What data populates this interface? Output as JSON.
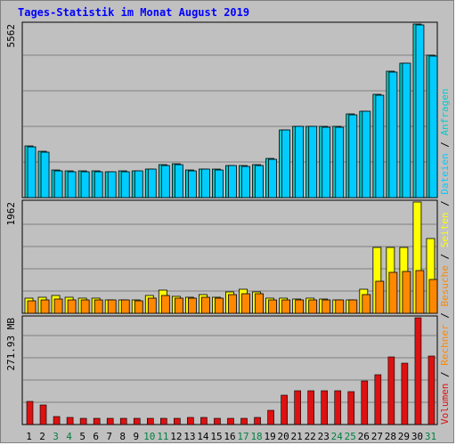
{
  "title": "Tages-Statistik im Monat August 2019",
  "colors": {
    "background": "#c0c0c0",
    "title": "#0000ff",
    "grid": "#808080",
    "anfragen": "#00cccc",
    "dateien": "#00ccff",
    "seiten": "#ffff00",
    "besuche": "#ff8800",
    "volumen": "#dd1111",
    "weekend_label": "#008040",
    "weekday_label": "#000000"
  },
  "chart_data": [
    {
      "type": "bar",
      "id": "hits-files",
      "ymax_label": "5562",
      "ylim": [
        0,
        5562
      ],
      "x": [
        "1",
        "2",
        "3",
        "4",
        "5",
        "6",
        "7",
        "8",
        "9",
        "10",
        "11",
        "12",
        "13",
        "14",
        "15",
        "16",
        "17",
        "18",
        "19",
        "20",
        "21",
        "22",
        "23",
        "24",
        "25",
        "26",
        "27",
        "28",
        "29",
        "30",
        "31"
      ],
      "weekend": [
        "3",
        "4",
        "10",
        "11",
        "17",
        "18",
        "24",
        "25",
        "31"
      ],
      "series": [
        {
          "name": "Anfragen",
          "values": [
            1660,
            1475,
            880,
            860,
            860,
            850,
            840,
            860,
            865,
            920,
            1050,
            1070,
            870,
            920,
            910,
            1040,
            1030,
            1050,
            1250,
            2180,
            2290,
            2290,
            2280,
            2270,
            2680,
            2780,
            3300,
            4050,
            4320,
            5562,
            4550
          ]
        },
        {
          "name": "Dateien",
          "values": [
            1640,
            1455,
            860,
            840,
            840,
            830,
            820,
            840,
            845,
            900,
            1030,
            1050,
            850,
            900,
            890,
            1020,
            1010,
            1030,
            1230,
            2160,
            2270,
            2270,
            2260,
            2250,
            2660,
            2760,
            3280,
            4030,
            4300,
            5540,
            4530
          ]
        }
      ]
    },
    {
      "type": "bar",
      "id": "pages-visits",
      "ymax_label": "1962",
      "ylim": [
        0,
        1962
      ],
      "series": [
        {
          "name": "Seiten",
          "values": [
            260,
            290,
            320,
            280,
            260,
            260,
            240,
            240,
            230,
            320,
            410,
            300,
            280,
            330,
            280,
            370,
            420,
            380,
            260,
            260,
            250,
            260,
            250,
            240,
            240,
            430,
            1160,
            1160,
            1160,
            1962,
            1320
          ]
        },
        {
          "name": "Besuche",
          "values": [
            220,
            230,
            250,
            230,
            230,
            230,
            230,
            230,
            220,
            260,
            310,
            260,
            260,
            280,
            260,
            330,
            350,
            340,
            240,
            240,
            240,
            240,
            240,
            240,
            240,
            330,
            570,
            720,
            730,
            760,
            590
          ]
        }
      ]
    },
    {
      "type": "bar",
      "id": "volume",
      "ymax_label": "271.93 MB",
      "ylim": [
        0,
        271.93
      ],
      "series": [
        {
          "name": "Volumen",
          "values": [
            58,
            49,
            20,
            18,
            16,
            15,
            16,
            15,
            15,
            16,
            16,
            15,
            17,
            17,
            16,
            16,
            16,
            17,
            37,
            75,
            85,
            85,
            85,
            85,
            84,
            110,
            128,
            172,
            157,
            271.93,
            175
          ]
        }
      ]
    }
  ],
  "right_legend": [
    {
      "text": "Anfragen",
      "color_key": "anfragen"
    },
    {
      "text": "/",
      "color_key": "weekday_label"
    },
    {
      "text": "Dateien",
      "color_key": "dateien"
    },
    {
      "text": "/",
      "color_key": "weekday_label"
    },
    {
      "text": "Seiten",
      "color_key": "seiten"
    },
    {
      "text": "/",
      "color_key": "weekday_label"
    },
    {
      "text": "Besuche",
      "color_key": "besuche"
    },
    {
      "text": "/",
      "color_key": "weekday_label"
    },
    {
      "text": "Rechner",
      "color_key": "besuche"
    },
    {
      "text": "/",
      "color_key": "weekday_label"
    },
    {
      "text": "Volumen",
      "color_key": "volumen"
    }
  ]
}
